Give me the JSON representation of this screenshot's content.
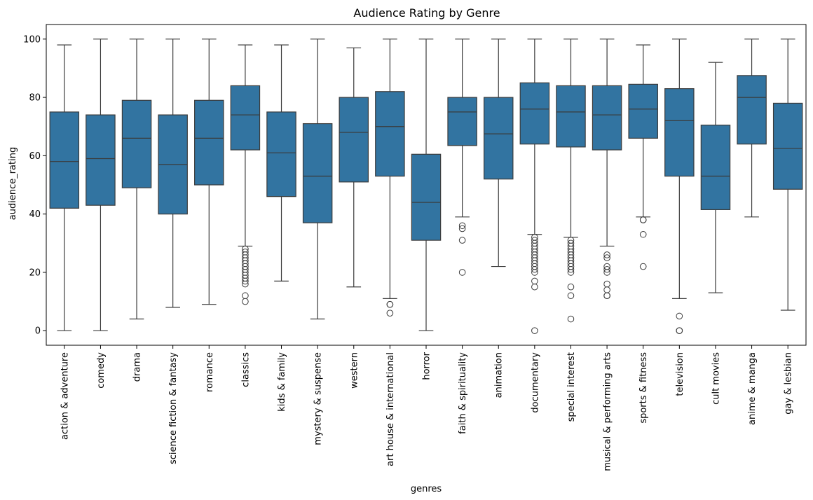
{
  "chart_data": {
    "type": "box",
    "title": "Audience Rating by Genre",
    "xlabel": "genres",
    "ylabel": "audience_rating",
    "ylim": [
      -5,
      105
    ],
    "yticks": [
      0,
      20,
      40,
      60,
      80,
      100
    ],
    "grid": false,
    "box_color": "#3274a1",
    "line_color": "#3b3b3b",
    "categories": [
      "action & adventure",
      "comedy",
      "drama",
      "science fiction & fantasy",
      "romance",
      "classics",
      "kids & family",
      "mystery & suspense",
      "western",
      "art house & international",
      "horror",
      "faith & spirituality",
      "animation",
      "documentary",
      "special interest",
      "musical & performing arts",
      "sports & fitness",
      "television",
      "cult movies",
      "anime & manga",
      "gay & lesbian"
    ],
    "boxes": [
      {
        "min": 0,
        "q1": 42,
        "median": 58,
        "q3": 75,
        "max": 98,
        "outliers": []
      },
      {
        "min": 0,
        "q1": 43,
        "median": 59,
        "q3": 74,
        "max": 100,
        "outliers": []
      },
      {
        "min": 4,
        "q1": 49,
        "median": 66,
        "q3": 79,
        "max": 100,
        "outliers": []
      },
      {
        "min": 8,
        "q1": 40,
        "median": 57,
        "q3": 74,
        "max": 100,
        "outliers": []
      },
      {
        "min": 9,
        "q1": 50,
        "median": 66,
        "q3": 79,
        "max": 100,
        "outliers": []
      },
      {
        "min": 29,
        "q1": 62,
        "median": 74,
        "q3": 84,
        "max": 98,
        "outliers": [
          28,
          27,
          26,
          25,
          24,
          23,
          22,
          21,
          20,
          19,
          18,
          17,
          16,
          12,
          10
        ]
      },
      {
        "min": 17,
        "q1": 46,
        "median": 61,
        "q3": 75,
        "max": 98,
        "outliers": []
      },
      {
        "min": 4,
        "q1": 37,
        "median": 53,
        "q3": 71,
        "max": 100,
        "outliers": []
      },
      {
        "min": 15,
        "q1": 51,
        "median": 68,
        "q3": 80,
        "max": 97,
        "outliers": []
      },
      {
        "min": 11,
        "q1": 53,
        "median": 70,
        "q3": 82,
        "max": 100,
        "outliers": [
          9,
          9,
          6
        ]
      },
      {
        "min": 0,
        "q1": 31,
        "median": 44,
        "q3": 60.5,
        "max": 100,
        "outliers": []
      },
      {
        "min": 39,
        "q1": 63.5,
        "median": 75,
        "q3": 80,
        "max": 100,
        "outliers": [
          36,
          35,
          31,
          20
        ]
      },
      {
        "min": 22,
        "q1": 52,
        "median": 67.5,
        "q3": 80,
        "max": 100,
        "outliers": []
      },
      {
        "min": 33,
        "q1": 64,
        "median": 76,
        "q3": 85,
        "max": 100,
        "outliers": [
          32,
          31,
          30,
          29,
          28,
          27,
          26,
          25,
          24,
          23,
          22,
          21,
          20,
          17,
          15,
          0
        ]
      },
      {
        "min": 32,
        "q1": 63,
        "median": 75,
        "q3": 84,
        "max": 100,
        "outliers": [
          31,
          30,
          29,
          28,
          27,
          26,
          25,
          24,
          23,
          22,
          21,
          20,
          15,
          12,
          4
        ]
      },
      {
        "min": 29,
        "q1": 62,
        "median": 74,
        "q3": 84,
        "max": 100,
        "outliers": [
          26,
          25,
          22,
          21,
          20,
          16,
          14,
          12,
          12
        ]
      },
      {
        "min": 39,
        "q1": 66,
        "median": 76,
        "q3": 84.5,
        "max": 98,
        "outliers": [
          38,
          38,
          33,
          22
        ]
      },
      {
        "min": 11,
        "q1": 53,
        "median": 72,
        "q3": 83,
        "max": 100,
        "outliers": [
          5,
          0,
          0
        ]
      },
      {
        "min": 13,
        "q1": 41.5,
        "median": 53,
        "q3": 70.5,
        "max": 92,
        "outliers": []
      },
      {
        "min": 39,
        "q1": 64,
        "median": 80,
        "q3": 87.5,
        "max": 100,
        "outliers": []
      },
      {
        "min": 7,
        "q1": 48.5,
        "median": 62.5,
        "q3": 78,
        "max": 100,
        "outliers": []
      }
    ]
  }
}
